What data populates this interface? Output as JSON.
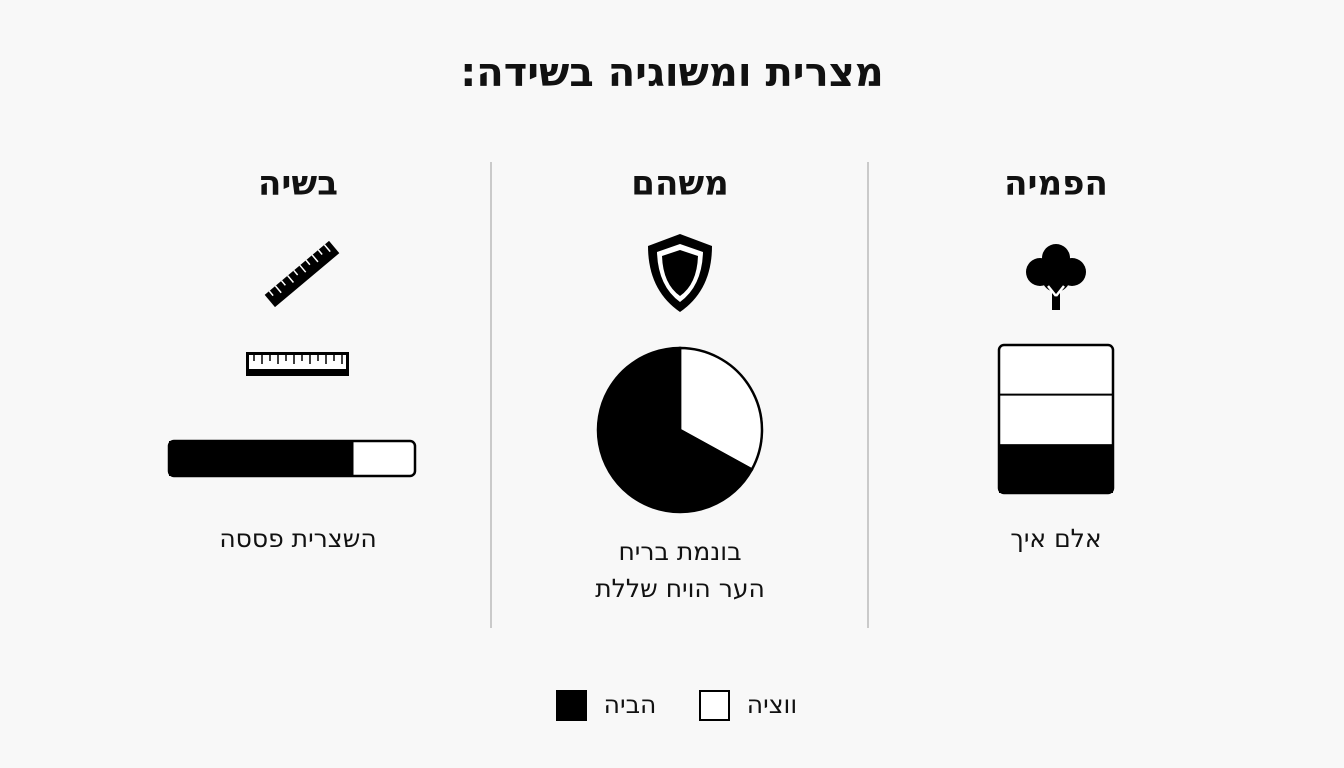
{
  "title": "מצרית ומשוגיה בשידה:",
  "columns": [
    {
      "heading": "הפמיה",
      "caption": [
        "אלם איך"
      ],
      "filled": 33,
      "empty": 67
    },
    {
      "heading": "משהם",
      "caption": [
        "בונמת בריח",
        "הער הויח שללת"
      ],
      "filled": 67,
      "empty": 33
    },
    {
      "heading": "בשיה",
      "caption": [
        "השצרית פססה"
      ],
      "filled": 75,
      "empty": 25
    }
  ],
  "legend": [
    {
      "label": "הביה",
      "color": "#000000"
    },
    {
      "label": "ווציה",
      "color": "#ffffff"
    }
  ]
}
